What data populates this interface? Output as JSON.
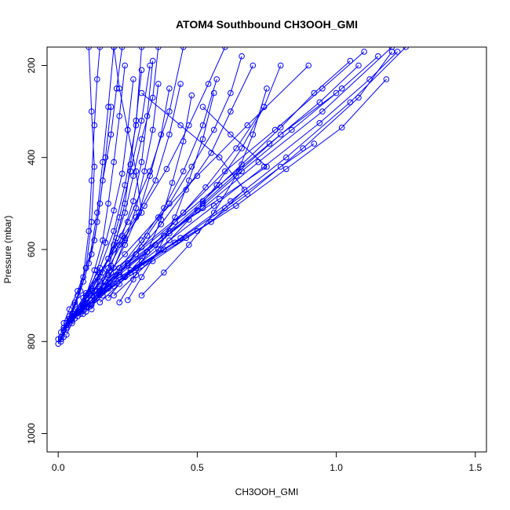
{
  "chart_data": {
    "type": "line",
    "title": "ATOM4 Southbound CH3OOH_GMI",
    "xlabel": "CH3OOH_GMI",
    "ylabel": "Pressure (mbar)",
    "xlim": [
      -0.04,
      1.54
    ],
    "ylim": [
      1040,
      160
    ],
    "y_reversed": true,
    "x_ticks": [
      0.0,
      0.5,
      1.0,
      1.5
    ],
    "x_tick_labels": [
      "0.0",
      "0.5",
      "1.0",
      "1.5"
    ],
    "y_ticks": [
      200,
      400,
      600,
      800,
      1000
    ],
    "y_tick_labels": [
      "200",
      "400",
      "600",
      "800",
      "1000"
    ],
    "grid": false,
    "legend": "none",
    "marker": "open-circle",
    "series_color": "#0000ff",
    "series": [
      {
        "x": [
          0.0,
          0.01,
          0.03,
          0.06,
          0.09,
          0.11,
          0.12,
          0.13,
          0.14,
          0.15
        ],
        "y": [
          805,
          790,
          760,
          720,
          660,
          560,
          450,
          330,
          230,
          160
        ]
      },
      {
        "x": [
          0.01,
          0.02,
          0.04,
          0.07,
          0.1,
          0.12,
          0.13,
          0.12,
          0.11
        ],
        "y": [
          800,
          775,
          745,
          700,
          640,
          540,
          420,
          300,
          160
        ]
      },
      {
        "x": [
          0.0,
          0.02,
          0.05,
          0.08,
          0.11,
          0.14,
          0.16,
          0.18,
          0.2
        ],
        "y": [
          795,
          770,
          740,
          690,
          630,
          520,
          410,
          290,
          160
        ]
      },
      {
        "x": [
          0.02,
          0.03,
          0.06,
          0.1,
          0.15,
          0.2,
          0.24,
          0.28,
          0.3
        ],
        "y": [
          790,
          765,
          735,
          695,
          640,
          560,
          460,
          330,
          160
        ]
      },
      {
        "x": [
          0.03,
          0.05,
          0.08,
          0.12,
          0.18,
          0.25,
          0.33,
          0.4,
          0.45
        ],
        "y": [
          785,
          760,
          725,
          685,
          620,
          540,
          430,
          300,
          160
        ]
      },
      {
        "x": [
          0.01,
          0.04,
          0.09,
          0.15,
          0.24,
          0.36,
          0.5,
          0.68,
          0.9
        ],
        "y": [
          780,
          750,
          715,
          670,
          610,
          530,
          440,
          330,
          200
        ]
      },
      {
        "x": [
          0.02,
          0.06,
          0.12,
          0.22,
          0.35,
          0.52,
          0.72,
          0.95,
          1.2
        ],
        "y": [
          770,
          740,
          700,
          650,
          590,
          510,
          410,
          300,
          160
        ]
      },
      {
        "x": [
          0.04,
          0.08,
          0.16,
          0.28,
          0.44,
          0.62,
          0.82,
          1.05,
          1.25
        ],
        "y": [
          760,
          730,
          690,
          640,
          575,
          495,
          400,
          280,
          160
        ]
      },
      {
        "x": [
          0.05,
          0.1,
          0.2,
          0.34,
          0.5,
          0.68,
          0.88,
          1.08,
          1.2
        ],
        "y": [
          755,
          725,
          680,
          625,
          560,
          480,
          380,
          270,
          170
        ]
      },
      {
        "x": [
          0.03,
          0.07,
          0.14,
          0.25,
          0.4,
          0.58,
          0.75,
          0.62,
          0.52
        ],
        "y": [
          765,
          735,
          690,
          630,
          560,
          490,
          420,
          350,
          290
        ]
      },
      {
        "x": [
          0.06,
          0.12,
          0.22,
          0.38,
          0.55,
          0.67,
          0.58,
          0.44,
          0.3
        ],
        "y": [
          750,
          710,
          660,
          600,
          540,
          470,
          400,
          330,
          260
        ]
      },
      {
        "x": [
          0.02,
          0.05,
          0.1,
          0.18,
          0.3,
          0.45,
          0.6,
          0.78,
          0.95,
          1.1
        ],
        "y": [
          775,
          745,
          705,
          655,
          595,
          520,
          430,
          340,
          250,
          170
        ]
      },
      {
        "x": [
          0.07,
          0.14,
          0.26,
          0.42,
          0.6,
          0.8,
          0.92
        ],
        "y": [
          745,
          705,
          650,
          585,
          510,
          420,
          370
        ]
      },
      {
        "x": [
          0.01,
          0.03,
          0.07,
          0.12,
          0.18,
          0.22,
          0.26,
          0.3,
          0.33
        ],
        "y": [
          795,
          770,
          735,
          690,
          620,
          530,
          430,
          320,
          200
        ]
      },
      {
        "x": [
          0.08,
          0.12,
          0.16,
          0.2,
          0.24,
          0.27,
          0.3,
          0.34,
          0.36
        ],
        "y": [
          740,
          700,
          650,
          590,
          520,
          440,
          360,
          270,
          160
        ]
      },
      {
        "x": [
          0.1,
          0.16,
          0.22,
          0.3,
          0.38,
          0.45,
          0.52,
          0.57
        ],
        "y": [
          735,
          690,
          640,
          580,
          510,
          430,
          330,
          230
        ]
      },
      {
        "x": [
          0.05,
          0.09,
          0.14,
          0.2,
          0.28,
          0.35,
          0.4,
          0.44
        ],
        "y": [
          745,
          705,
          660,
          600,
          530,
          450,
          350,
          240
        ]
      },
      {
        "x": [
          0.12,
          0.18,
          0.25,
          0.32,
          0.4,
          0.48,
          0.56,
          0.62,
          0.66
        ],
        "y": [
          720,
          680,
          630,
          570,
          500,
          420,
          340,
          260,
          180
        ]
      },
      {
        "x": [
          0.04,
          0.06,
          0.09,
          0.12,
          0.14,
          0.16,
          0.19,
          0.21,
          0.23
        ],
        "y": [
          750,
          715,
          670,
          610,
          540,
          450,
          350,
          250,
          160
        ]
      },
      {
        "x": [
          0.09,
          0.13,
          0.18,
          0.24,
          0.31,
          0.39,
          0.47,
          0.54,
          0.6
        ],
        "y": [
          730,
          690,
          640,
          575,
          505,
          425,
          330,
          240,
          160
        ]
      },
      {
        "x": [
          0.06,
          0.1,
          0.15,
          0.22,
          0.3,
          0.28,
          0.25,
          0.22,
          0.2
        ],
        "y": [
          740,
          700,
          650,
          590,
          520,
          430,
          340,
          250,
          160
        ]
      },
      {
        "x": [
          0.15,
          0.22,
          0.3,
          0.4,
          0.52,
          0.65,
          0.8,
          1.0
        ],
        "y": [
          715,
          675,
          625,
          565,
          500,
          430,
          350,
          260
        ]
      },
      {
        "x": [
          0.1,
          0.18,
          0.3,
          0.46,
          0.64,
          0.82,
          1.02,
          1.18
        ],
        "y": [
          725,
          685,
          635,
          575,
          505,
          425,
          335,
          230
        ]
      },
      {
        "x": [
          0.13,
          0.2,
          0.28,
          0.37,
          0.46,
          0.55,
          0.62,
          0.7
        ],
        "y": [
          710,
          665,
          610,
          545,
          470,
          390,
          300,
          200
        ]
      },
      {
        "x": [
          0.02,
          0.04,
          0.07,
          0.1,
          0.13,
          0.15,
          0.17,
          0.19
        ],
        "y": [
          760,
          730,
          690,
          640,
          580,
          500,
          400,
          290
        ]
      },
      {
        "x": [
          0.08,
          0.11,
          0.14,
          0.17,
          0.2,
          0.23,
          0.25,
          0.27
        ],
        "y": [
          735,
          695,
          645,
          585,
          515,
          435,
          340,
          230
        ]
      },
      {
        "x": [
          0.11,
          0.15,
          0.19,
          0.23,
          0.27,
          0.3,
          0.32,
          0.34
        ],
        "y": [
          725,
          685,
          635,
          570,
          495,
          410,
          310,
          190
        ]
      },
      {
        "x": [
          0.03,
          0.08,
          0.15,
          0.25,
          0.38,
          0.52,
          0.66,
          0.8,
          0.92,
          1.05
        ],
        "y": [
          770,
          735,
          690,
          635,
          570,
          495,
          415,
          335,
          260,
          190
        ]
      },
      {
        "x": [
          0.14,
          0.19,
          0.24,
          0.29,
          0.33,
          0.37,
          0.4
        ],
        "y": [
          700,
          650,
          590,
          520,
          440,
          350,
          250
        ]
      },
      {
        "x": [
          0.16,
          0.2,
          0.24,
          0.28,
          0.31,
          0.34,
          0.36
        ],
        "y": [
          690,
          640,
          580,
          510,
          430,
          340,
          240
        ]
      },
      {
        "x": [
          0.05,
          0.12,
          0.22,
          0.35,
          0.5,
          0.66,
          0.84,
          1.02,
          1.15
        ],
        "y": [
          750,
          710,
          655,
          590,
          515,
          430,
          340,
          250,
          180
        ]
      },
      {
        "x": [
          0.18,
          0.24,
          0.32,
          0.42,
          0.53,
          0.64,
          0.74
        ],
        "y": [
          705,
          660,
          605,
          540,
          465,
          380,
          290
        ]
      },
      {
        "x": [
          0.07,
          0.1,
          0.13,
          0.16,
          0.18,
          0.2,
          0.22,
          0.24
        ],
        "y": [
          745,
          700,
          645,
          580,
          500,
          410,
          310,
          200
        ]
      },
      {
        "x": [
          0.2,
          0.28,
          0.37,
          0.47,
          0.57,
          0.66,
          0.74,
          0.8
        ],
        "y": [
          700,
          655,
          600,
          535,
          460,
          380,
          290,
          200
        ]
      },
      {
        "x": [
          0.09,
          0.16,
          0.26,
          0.4,
          0.56,
          0.74,
          0.94,
          1.12,
          1.22
        ],
        "y": [
          740,
          700,
          645,
          580,
          505,
          420,
          325,
          230,
          170
        ]
      },
      {
        "x": [
          0.25,
          0.3,
          0.36,
          0.42,
          0.47,
          0.52,
          0.56
        ],
        "y": [
          710,
          660,
          600,
          530,
          450,
          360,
          260
        ]
      },
      {
        "x": [
          0.12,
          0.15,
          0.18,
          0.21,
          0.24,
          0.26,
          0.28,
          0.3
        ],
        "y": [
          730,
          690,
          640,
          575,
          500,
          415,
          320,
          210
        ]
      },
      {
        "x": [
          0.3,
          0.38,
          0.47,
          0.56,
          0.64,
          0.7,
          0.75
        ],
        "y": [
          700,
          650,
          590,
          520,
          440,
          350,
          250
        ]
      },
      {
        "x": [
          0.04,
          0.09,
          0.17,
          0.28,
          0.42,
          0.58,
          0.76,
          0.94,
          1.08
        ],
        "y": [
          755,
          720,
          670,
          610,
          540,
          460,
          370,
          280,
          200
        ]
      },
      {
        "x": [
          0.22,
          0.27,
          0.32,
          0.37,
          0.41,
          0.45,
          0.48
        ],
        "y": [
          715,
          665,
          605,
          535,
          455,
          365,
          265
        ]
      }
    ]
  }
}
